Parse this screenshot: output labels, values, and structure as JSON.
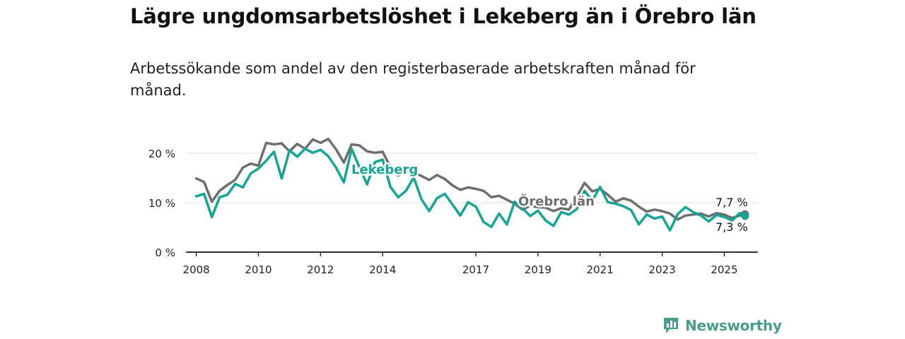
{
  "title": "Lägre ungdomsarbetslöshet i Lekeberg än i Örebro län",
  "subtitle": "Arbetssökande som andel av den registerbaserade arbetskraften månad för månad.",
  "logo": {
    "text": "Newsworthy",
    "color": "#4a9c8c",
    "icon": "newsworthy-bar-chart-logo"
  },
  "chart_data": {
    "type": "line",
    "title": "Lägre ungdomsarbetslöshet i Lekeberg än i Örebro län",
    "ylabel": "",
    "xlabel": "",
    "xlim": [
      "2007-09",
      "2026-02"
    ],
    "ylim": [
      0,
      20
    ],
    "grid": true,
    "ytick_labels": [
      "0 %",
      "10 %",
      "20 %"
    ],
    "ytick_values": [
      0,
      10,
      20
    ],
    "xtick_labels": [
      "2008",
      "2010",
      "2012",
      "2014",
      "2017",
      "2019",
      "2021",
      "2023",
      "2025"
    ],
    "end_labels": {
      "Örebro län": "7,7 %",
      "Lekeberg": "7,3 %"
    },
    "series": [
      {
        "name": "Örebro län",
        "color": "#6e6e6e",
        "points": [
          [
            "2008-01",
            14.9
          ],
          [
            "2008-04",
            14.2
          ],
          [
            "2008-07",
            10.2
          ],
          [
            "2008-10",
            12.4
          ],
          [
            "2009-01",
            13.6
          ],
          [
            "2009-04",
            14.6
          ],
          [
            "2009-07",
            17.1
          ],
          [
            "2009-10",
            17.9
          ],
          [
            "2010-01",
            17.5
          ],
          [
            "2010-04",
            22.1
          ],
          [
            "2010-07",
            21.8
          ],
          [
            "2010-10",
            22.0
          ],
          [
            "2011-01",
            20.4
          ],
          [
            "2011-04",
            21.9
          ],
          [
            "2011-07",
            20.9
          ],
          [
            "2011-10",
            22.8
          ],
          [
            "2012-01",
            22.1
          ],
          [
            "2012-04",
            22.9
          ],
          [
            "2012-07",
            20.8
          ],
          [
            "2012-10",
            18.1
          ],
          [
            "2013-01",
            21.8
          ],
          [
            "2013-04",
            21.6
          ],
          [
            "2013-07",
            20.4
          ],
          [
            "2013-10",
            20.1
          ],
          [
            "2014-01",
            20.3
          ],
          [
            "2014-04",
            17.2
          ],
          [
            "2014-07",
            15.5
          ],
          [
            "2014-10",
            16.3
          ],
          [
            "2015-01",
            16.1
          ],
          [
            "2015-04",
            15.4
          ],
          [
            "2015-07",
            14.6
          ],
          [
            "2015-10",
            15.6
          ],
          [
            "2016-01",
            14.8
          ],
          [
            "2016-04",
            13.5
          ],
          [
            "2016-07",
            12.6
          ],
          [
            "2016-10",
            13.1
          ],
          [
            "2017-01",
            12.8
          ],
          [
            "2017-04",
            12.4
          ],
          [
            "2017-07",
            11.1
          ],
          [
            "2017-10",
            11.4
          ],
          [
            "2018-01",
            10.6
          ],
          [
            "2018-04",
            9.8
          ],
          [
            "2018-07",
            8.6
          ],
          [
            "2018-10",
            9.4
          ],
          [
            "2019-01",
            9.1
          ],
          [
            "2019-04",
            9.0
          ],
          [
            "2019-07",
            8.3
          ],
          [
            "2019-10",
            8.9
          ],
          [
            "2020-01",
            8.6
          ],
          [
            "2020-04",
            11.2
          ],
          [
            "2020-07",
            14.0
          ],
          [
            "2020-10",
            12.3
          ],
          [
            "2021-01",
            12.8
          ],
          [
            "2021-04",
            11.6
          ],
          [
            "2021-07",
            10.2
          ],
          [
            "2021-10",
            10.9
          ],
          [
            "2022-01",
            10.4
          ],
          [
            "2022-04",
            9.2
          ],
          [
            "2022-07",
            8.2
          ],
          [
            "2022-10",
            8.6
          ],
          [
            "2023-01",
            8.3
          ],
          [
            "2023-04",
            7.8
          ],
          [
            "2023-07",
            6.6
          ],
          [
            "2023-10",
            7.4
          ],
          [
            "2024-01",
            7.6
          ],
          [
            "2024-04",
            7.8
          ],
          [
            "2024-07",
            7.2
          ],
          [
            "2024-10",
            7.9
          ],
          [
            "2025-01",
            7.6
          ],
          [
            "2025-04",
            6.9
          ],
          [
            "2025-07",
            7.4
          ],
          [
            "2025-09",
            7.7
          ]
        ]
      },
      {
        "name": "Lekeberg",
        "color": "#14a595",
        "points": [
          [
            "2008-01",
            11.3
          ],
          [
            "2008-04",
            11.8
          ],
          [
            "2008-07",
            7.1
          ],
          [
            "2008-10",
            11.1
          ],
          [
            "2009-01",
            11.6
          ],
          [
            "2009-04",
            13.8
          ],
          [
            "2009-07",
            13.1
          ],
          [
            "2009-10",
            15.9
          ],
          [
            "2010-01",
            16.9
          ],
          [
            "2010-04",
            18.5
          ],
          [
            "2010-07",
            20.3
          ],
          [
            "2010-10",
            14.9
          ],
          [
            "2011-01",
            20.6
          ],
          [
            "2011-04",
            19.3
          ],
          [
            "2011-07",
            20.9
          ],
          [
            "2011-10",
            20.1
          ],
          [
            "2012-01",
            20.7
          ],
          [
            "2012-04",
            19.4
          ],
          [
            "2012-07",
            17.1
          ],
          [
            "2012-10",
            14.1
          ],
          [
            "2013-01",
            20.9
          ],
          [
            "2013-04",
            17.2
          ],
          [
            "2013-07",
            13.7
          ],
          [
            "2013-10",
            18.2
          ],
          [
            "2014-01",
            18.7
          ],
          [
            "2014-04",
            13.2
          ],
          [
            "2014-07",
            11.1
          ],
          [
            "2014-10",
            12.4
          ],
          [
            "2015-01",
            15.1
          ],
          [
            "2015-04",
            10.7
          ],
          [
            "2015-07",
            8.3
          ],
          [
            "2015-10",
            10.9
          ],
          [
            "2016-01",
            11.8
          ],
          [
            "2016-04",
            9.6
          ],
          [
            "2016-07",
            7.4
          ],
          [
            "2016-10",
            10.1
          ],
          [
            "2017-01",
            9.2
          ],
          [
            "2017-04",
            6.1
          ],
          [
            "2017-07",
            5.1
          ],
          [
            "2017-10",
            7.8
          ],
          [
            "2018-01",
            5.6
          ],
          [
            "2018-04",
            10.2
          ],
          [
            "2018-07",
            8.9
          ],
          [
            "2018-10",
            7.3
          ],
          [
            "2019-01",
            8.4
          ],
          [
            "2019-04",
            6.4
          ],
          [
            "2019-07",
            5.3
          ],
          [
            "2019-10",
            8.1
          ],
          [
            "2020-01",
            7.6
          ],
          [
            "2020-04",
            8.7
          ],
          [
            "2020-07",
            12.4
          ],
          [
            "2020-10",
            10.4
          ],
          [
            "2021-01",
            13.2
          ],
          [
            "2021-04",
            10.1
          ],
          [
            "2021-07",
            9.8
          ],
          [
            "2021-10",
            9.3
          ],
          [
            "2022-01",
            8.5
          ],
          [
            "2022-04",
            5.6
          ],
          [
            "2022-07",
            7.6
          ],
          [
            "2022-10",
            6.8
          ],
          [
            "2023-01",
            7.2
          ],
          [
            "2023-04",
            4.4
          ],
          [
            "2023-07",
            7.7
          ],
          [
            "2023-10",
            9.1
          ],
          [
            "2024-01",
            8.1
          ],
          [
            "2024-04",
            7.4
          ],
          [
            "2024-07",
            6.2
          ],
          [
            "2024-10",
            7.5
          ],
          [
            "2025-01",
            7.1
          ],
          [
            "2025-04",
            6.4
          ],
          [
            "2025-07",
            7.9
          ],
          [
            "2025-09",
            7.3
          ]
        ]
      }
    ]
  }
}
